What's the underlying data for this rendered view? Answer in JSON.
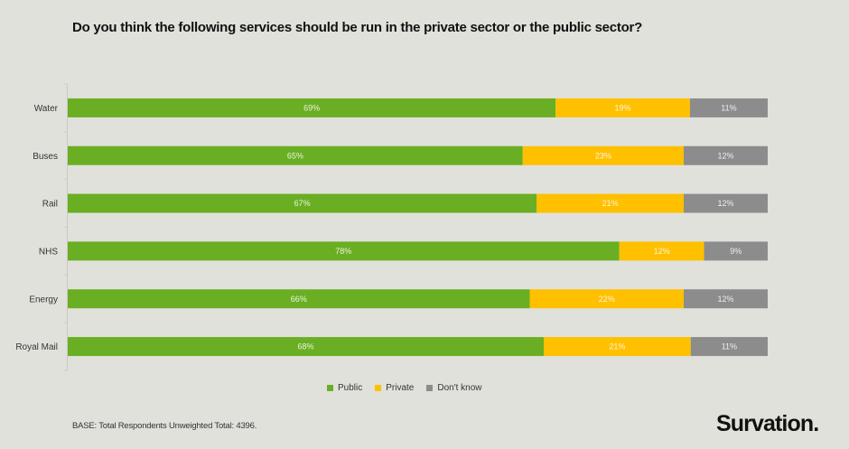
{
  "title": "Do you think the following services should be run in the private sector or the public sector?",
  "footer": {
    "base_note": "BASE: Total Respondents Unweighted Total: 4396.",
    "logo": "Survation."
  },
  "chart_data": {
    "type": "bar",
    "orientation": "horizontal",
    "stacked": "100%",
    "title": "Do you think the following services should be run in the private sector or the public sector?",
    "xlabel": "",
    "ylabel": "",
    "xlim": [
      0,
      100
    ],
    "grid": false,
    "legend": "bottom-center",
    "categories": [
      "Water",
      "Buses",
      "Rail",
      "NHS",
      "Energy",
      "Royal Mail"
    ],
    "series": [
      {
        "name": "Public",
        "color": "#6aaf23",
        "values": [
          69,
          65,
          67,
          78,
          66,
          68
        ],
        "labels": [
          "69%",
          "65%",
          "67%",
          "78%",
          "66%",
          "68%"
        ]
      },
      {
        "name": "Private",
        "color": "#ffc000",
        "values": [
          19,
          23,
          21,
          12,
          22,
          21
        ],
        "labels": [
          "19%",
          "23%",
          "21%",
          "12%",
          "22%",
          "21%"
        ]
      },
      {
        "name": "Don't know",
        "color": "#8c8c8c",
        "values": [
          11,
          12,
          12,
          9,
          12,
          11
        ],
        "labels": [
          "11%",
          "12%",
          "12%",
          "9%",
          "12%",
          "11%"
        ]
      }
    ]
  }
}
